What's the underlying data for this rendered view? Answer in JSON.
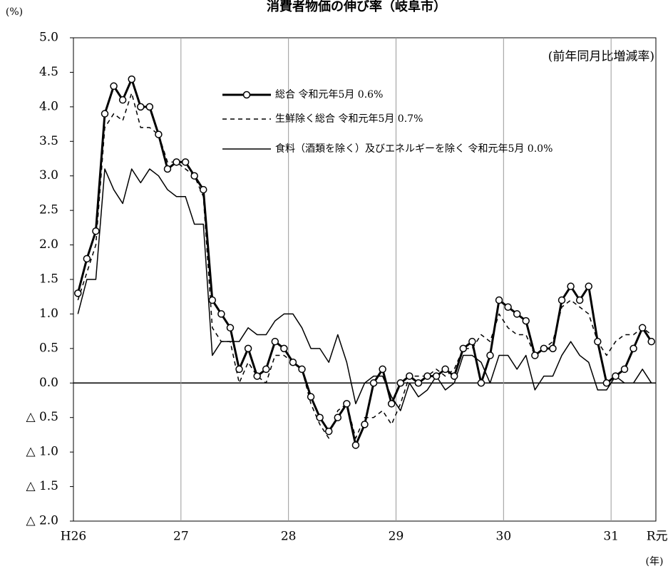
{
  "chart_data": {
    "type": "line",
    "title": "消費者物価の伸び率（岐阜市）",
    "y_unit": "(%)",
    "x_unit": "(年)",
    "note": "(前年同月比増減率)",
    "categories": [
      "H26",
      null,
      null,
      null,
      null,
      null,
      null,
      null,
      null,
      null,
      null,
      null,
      "27",
      null,
      null,
      null,
      null,
      null,
      null,
      null,
      null,
      null,
      null,
      null,
      "28",
      null,
      null,
      null,
      null,
      null,
      null,
      null,
      null,
      null,
      null,
      null,
      "29",
      null,
      null,
      null,
      null,
      null,
      null,
      null,
      null,
      null,
      null,
      null,
      "30",
      null,
      null,
      null,
      null,
      null,
      null,
      null,
      null,
      null,
      null,
      null,
      "31",
      null,
      null,
      null,
      "R元"
    ],
    "ylim": [
      -2,
      5
    ],
    "yticks": [
      {
        "value": 5,
        "label": "5.0"
      },
      {
        "value": 4.5,
        "label": "4.5"
      },
      {
        "value": 4,
        "label": "4.0"
      },
      {
        "value": 3.5,
        "label": "3.5"
      },
      {
        "value": 3,
        "label": "3.0"
      },
      {
        "value": 2.5,
        "label": "2.5"
      },
      {
        "value": 2,
        "label": "2.0"
      },
      {
        "value": 1.5,
        "label": "1.5"
      },
      {
        "value": 1,
        "label": "1.0"
      },
      {
        "value": 0.5,
        "label": "0.5"
      },
      {
        "value": 0,
        "label": "0.0"
      },
      {
        "value": -0.5,
        "label": "△ 0.5"
      },
      {
        "value": -1,
        "label": "△ 1.0"
      },
      {
        "value": -1.5,
        "label": "△ 1.5"
      },
      {
        "value": -2,
        "label": "△ 2.0"
      }
    ],
    "grid": true,
    "series": [
      {
        "name": "総合 令和元年5月 0.6%",
        "color": "#000000",
        "width": 3,
        "dash": "none",
        "marker": true,
        "values": [
          1.3,
          1.8,
          2.2,
          3.9,
          4.3,
          4.1,
          4.4,
          4.0,
          4.0,
          3.6,
          3.1,
          3.2,
          3.2,
          3.0,
          2.8,
          1.2,
          1.0,
          0.8,
          0.2,
          0.5,
          0.1,
          0.2,
          0.6,
          0.5,
          0.3,
          0.2,
          -0.2,
          -0.5,
          -0.7,
          -0.5,
          -0.3,
          -0.9,
          -0.6,
          0.0,
          0.2,
          -0.3,
          0.0,
          0.1,
          0.0,
          0.1,
          0.1,
          0.2,
          0.1,
          0.5,
          0.6,
          0.0,
          0.4,
          1.2,
          1.1,
          1.0,
          0.9,
          0.4,
          0.5,
          0.5,
          1.2,
          1.4,
          1.2,
          1.4,
          0.6,
          0.0,
          0.1,
          0.2,
          0.5,
          0.8,
          0.6
        ]
      },
      {
        "name": "生鮮除く総合 令和元年5月 0.7%",
        "color": "#000000",
        "width": 1.5,
        "dash": "6 5",
        "marker": false,
        "values": [
          1.2,
          1.6,
          2.0,
          3.7,
          3.9,
          3.8,
          4.2,
          3.7,
          3.7,
          3.6,
          3.2,
          3.2,
          3.1,
          3.0,
          2.7,
          0.8,
          0.6,
          0.6,
          0.0,
          0.3,
          0.1,
          0.0,
          0.4,
          0.4,
          0.3,
          0.2,
          -0.3,
          -0.6,
          -0.8,
          -0.4,
          -0.3,
          -0.8,
          -0.5,
          -0.5,
          -0.4,
          -0.6,
          -0.3,
          0.1,
          0.1,
          0.1,
          0.2,
          0.1,
          0.2,
          0.5,
          0.5,
          0.7,
          0.6,
          1.0,
          0.8,
          0.7,
          0.7,
          0.4,
          0.5,
          0.6,
          1.1,
          1.2,
          1.1,
          1.0,
          0.6,
          0.4,
          0.6,
          0.7,
          0.7,
          0.8,
          0.7
        ]
      },
      {
        "name": "食料（酒類を除く）及びエネルギーを除く 令和元年5月 0.0%",
        "color": "#000000",
        "width": 1.5,
        "dash": "none",
        "marker": false,
        "values": [
          1.0,
          1.5,
          1.5,
          3.1,
          2.8,
          2.6,
          3.1,
          2.9,
          3.1,
          3.0,
          2.8,
          2.7,
          2.7,
          2.3,
          2.3,
          0.4,
          0.6,
          0.6,
          0.6,
          0.8,
          0.7,
          0.7,
          0.9,
          1.0,
          1.0,
          0.8,
          0.5,
          0.5,
          0.3,
          0.7,
          0.3,
          -0.3,
          0.0,
          0.1,
          0.1,
          -0.2,
          -0.4,
          0.0,
          -0.2,
          -0.1,
          0.1,
          -0.1,
          0.0,
          0.4,
          0.4,
          0.3,
          0.0,
          0.4,
          0.4,
          0.2,
          0.4,
          -0.1,
          0.1,
          0.1,
          0.4,
          0.6,
          0.4,
          0.3,
          -0.1,
          -0.1,
          0.1,
          0.0,
          0.0,
          0.2,
          0.0
        ]
      }
    ]
  }
}
